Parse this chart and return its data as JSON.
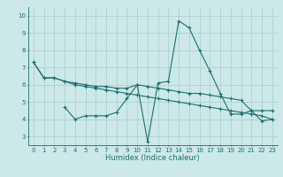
{
  "xlabel": "Humidex (Indice chaleur)",
  "ylabel": "",
  "background_color": "#cce8e8",
  "grid_color": "#aacccc",
  "line_color": "#1a7070",
  "xlim": [
    -0.5,
    23.5
  ],
  "ylim": [
    2.5,
    10.5
  ],
  "xticks": [
    0,
    1,
    2,
    3,
    4,
    5,
    6,
    7,
    8,
    9,
    10,
    11,
    12,
    13,
    14,
    15,
    16,
    17,
    18,
    19,
    20,
    21,
    22,
    23
  ],
  "yticks": [
    3,
    4,
    5,
    6,
    7,
    8,
    9,
    10
  ],
  "series": [
    {
      "x": [
        0,
        1,
        2,
        3,
        4,
        5,
        6,
        7,
        8,
        9,
        10,
        11,
        12,
        13,
        14,
        15,
        16,
        17,
        18,
        19,
        20,
        21,
        22,
        23
      ],
      "y": [
        7.3,
        6.4,
        6.4,
        6.2,
        6.1,
        6.0,
        5.9,
        5.9,
        5.8,
        5.8,
        6.0,
        5.9,
        5.8,
        5.7,
        5.6,
        5.5,
        5.5,
        5.4,
        5.3,
        5.2,
        5.1,
        4.5,
        4.5,
        4.5
      ]
    },
    {
      "x": [
        3,
        4,
        5,
        6,
        7,
        8,
        9,
        10,
        11,
        12,
        13,
        14,
        15,
        16,
        17,
        18,
        19,
        20,
        21,
        22,
        23
      ],
      "y": [
        4.7,
        4.0,
        4.2,
        4.2,
        4.2,
        4.4,
        5.2,
        6.0,
        2.7,
        6.1,
        6.2,
        9.7,
        9.3,
        8.0,
        6.8,
        5.5,
        4.3,
        4.3,
        4.5,
        3.9,
        4.0
      ]
    },
    {
      "x": [
        0,
        1,
        2,
        3,
        4,
        5,
        6,
        7,
        8,
        9,
        10,
        11,
        12,
        13,
        14,
        15,
        16,
        17,
        18,
        19,
        20,
        21,
        22,
        23
      ],
      "y": [
        7.3,
        6.4,
        6.4,
        6.2,
        6.0,
        5.9,
        5.8,
        5.7,
        5.6,
        5.5,
        5.4,
        5.3,
        5.2,
        5.1,
        5.0,
        4.9,
        4.8,
        4.7,
        4.6,
        4.5,
        4.4,
        4.3,
        4.2,
        4.0
      ]
    }
  ]
}
